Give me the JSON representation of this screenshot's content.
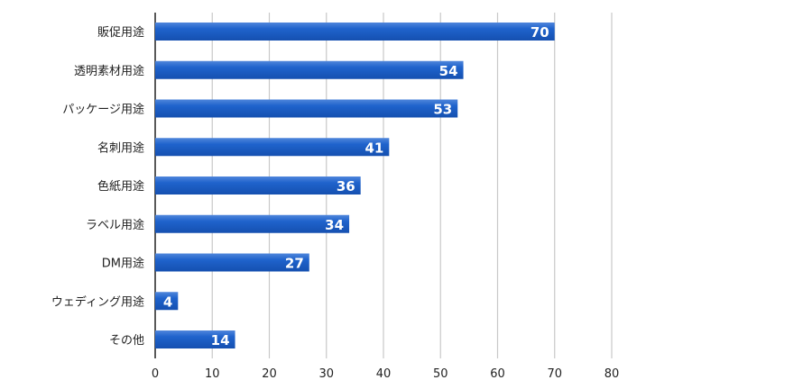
{
  "chart_data": {
    "type": "bar",
    "orientation": "horizontal",
    "categories": [
      "販促用途",
      "透明素材用途",
      "パッケージ用途",
      "名刺用途",
      "色紙用途",
      "ラベル用途",
      "DM用途",
      "ウェディング用途",
      "その他"
    ],
    "values": [
      70,
      54,
      53,
      41,
      36,
      34,
      27,
      4,
      14
    ],
    "xlim": [
      0,
      80
    ],
    "xticks": [
      "0",
      "10",
      "20",
      "30",
      "40",
      "50",
      "60",
      "70",
      "80"
    ],
    "grid": true,
    "data_labels": true,
    "bar_color": "#1a5cc4",
    "title": "",
    "xlabel": "",
    "ylabel": ""
  }
}
